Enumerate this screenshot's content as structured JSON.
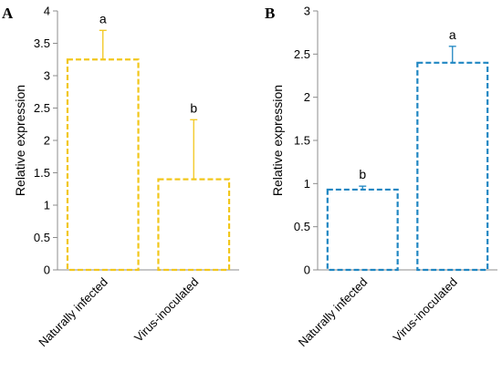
{
  "chart_data": [
    {
      "type": "bar",
      "panel": "A",
      "title": "",
      "xlabel": "",
      "ylabel": "Relative expression",
      "ylim": [
        0,
        4
      ],
      "yticks": [
        "0",
        "0.5",
        "1",
        "1.5",
        "2",
        "2.5",
        "3",
        "3.5",
        "4"
      ],
      "categories": [
        "Naturally infected",
        "Virus-inoculated"
      ],
      "values": [
        3.25,
        1.4
      ],
      "errors": [
        0.45,
        0.92
      ],
      "significance": [
        "a",
        "b"
      ],
      "grid": false,
      "style": "dashed-outline",
      "color": "#F2C71B"
    },
    {
      "type": "bar",
      "panel": "B",
      "title": "",
      "xlabel": "",
      "ylabel": "Relative expression",
      "ylim": [
        0,
        3
      ],
      "yticks": [
        "0",
        "0.5",
        "1",
        "1.5",
        "2",
        "2.5",
        "3"
      ],
      "categories": [
        "Naturally infected",
        "Virus-inoculated"
      ],
      "values": [
        0.93,
        2.4
      ],
      "errors": [
        0.04,
        0.19
      ],
      "significance": [
        "b",
        "a"
      ],
      "grid": false,
      "style": "dashed-outline",
      "color": "#1F86C2"
    }
  ]
}
